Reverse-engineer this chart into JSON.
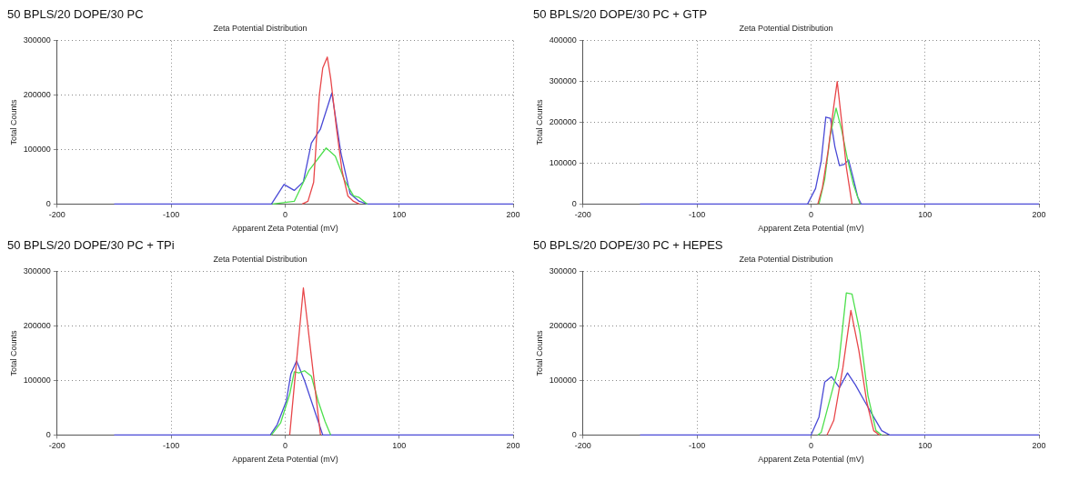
{
  "chart_data": [
    {
      "type": "line",
      "title": "50 BPLS/20 DOPE/30 PC",
      "subtitle": "Zeta Potential Distribution",
      "xlabel": "Apparent Zeta Potential (mV)",
      "ylabel": "Total Counts",
      "xlim": [
        -200,
        200
      ],
      "xticks": [
        -200,
        -100,
        0,
        100,
        200
      ],
      "ylim": [
        0,
        300000
      ],
      "yticks": [
        0,
        100000,
        200000,
        300000
      ],
      "grid": true,
      "legend": false,
      "marker": "none",
      "line_style": "solid",
      "series": [
        {
          "color": "#e8474a",
          "x": [
            15,
            20,
            25,
            30,
            33,
            37,
            40,
            45,
            50,
            55,
            60,
            65
          ],
          "values": [
            0,
            5000,
            40000,
            200000,
            250000,
            270000,
            230000,
            140000,
            60000,
            15000,
            5000,
            0
          ]
        },
        {
          "color": "#4ee04e",
          "x": [
            -11,
            8,
            21,
            36,
            44,
            52,
            60,
            65,
            72
          ],
          "values": [
            0,
            5000,
            62000,
            103000,
            88000,
            44000,
            15000,
            12000,
            0
          ]
        },
        {
          "color": "#4a4ad6",
          "x": [
            -150,
            -12,
            -1,
            8,
            16,
            23,
            31,
            41,
            49,
            57,
            65,
            72,
            200
          ],
          "values": [
            0,
            0,
            36000,
            25000,
            41000,
            112000,
            138000,
            204000,
            93000,
            19000,
            5000,
            0,
            0
          ]
        }
      ]
    },
    {
      "type": "line",
      "title": "50 BPLS/20 DOPE/30 PC + GTP",
      "subtitle": "Zeta Potential Distribution",
      "xlabel": "Apparent Zeta Potential (mV)",
      "ylabel": "Total Counts",
      "xlim": [
        -200,
        200
      ],
      "xticks": [
        -200,
        -100,
        0,
        100,
        200
      ],
      "ylim": [
        0,
        400000
      ],
      "yticks": [
        0,
        100000,
        200000,
        300000,
        400000
      ],
      "grid": true,
      "legend": false,
      "marker": "none",
      "line_style": "solid",
      "series": [
        {
          "color": "#e8474a",
          "x": [
            6,
            10,
            15,
            20,
            23,
            27,
            31,
            36
          ],
          "values": [
            0,
            40000,
            130000,
            240000,
            300000,
            200000,
            90000,
            0
          ]
        },
        {
          "color": "#4ee04e",
          "x": [
            7,
            12,
            17,
            22,
            27,
            32,
            37,
            43
          ],
          "values": [
            0,
            60000,
            170000,
            235000,
            180000,
            110000,
            50000,
            0
          ]
        },
        {
          "color": "#4a4ad6",
          "x": [
            -150,
            -3,
            4,
            9,
            13,
            17,
            21,
            25,
            29,
            33,
            37,
            41,
            44,
            200
          ],
          "values": [
            0,
            0,
            38000,
            106000,
            213000,
            210000,
            140000,
            94000,
            97000,
            108000,
            64000,
            17000,
            0,
            0
          ]
        }
      ]
    },
    {
      "type": "line",
      "title": "50 BPLS/20 DOPE/30 PC + TPi",
      "subtitle": "Zeta Potential Distribution",
      "xlabel": "Apparent Zeta Potential (mV)",
      "ylabel": "Total Counts",
      "xlim": [
        -200,
        200
      ],
      "xticks": [
        -200,
        -100,
        0,
        100,
        200
      ],
      "ylim": [
        0,
        300000
      ],
      "yticks": [
        0,
        100000,
        200000,
        300000
      ],
      "grid": true,
      "legend": false,
      "marker": "none",
      "line_style": "solid",
      "series": [
        {
          "color": "#e8474a",
          "x": [
            4,
            16,
            31
          ],
          "values": [
            0,
            270000,
            0
          ]
        },
        {
          "color": "#4ee04e",
          "x": [
            -12,
            -4,
            4,
            8,
            12,
            17,
            23,
            29,
            35,
            40
          ],
          "values": [
            0,
            22000,
            75000,
            116000,
            114000,
            118000,
            108000,
            62000,
            25000,
            0
          ]
        },
        {
          "color": "#4a4ad6",
          "x": [
            -150,
            -13,
            -7,
            1,
            5,
            10,
            17,
            25,
            29,
            33,
            200
          ],
          "values": [
            0,
            0,
            19000,
            62000,
            112000,
            136000,
            100000,
            50000,
            25000,
            0,
            0
          ]
        }
      ]
    },
    {
      "type": "line",
      "title": "50 BPLS/20 DOPE/30 PC + HEPES",
      "subtitle": "Zeta Potential Distribution",
      "xlabel": "Apparent Zeta Potential (mV)",
      "ylabel": "Total Counts",
      "xlim": [
        -200,
        200
      ],
      "xticks": [
        -200,
        -100,
        0,
        100,
        200
      ],
      "ylim": [
        0,
        300000
      ],
      "yticks": [
        0,
        100000,
        200000,
        300000
      ],
      "grid": true,
      "legend": false,
      "marker": "none",
      "line_style": "solid",
      "series": [
        {
          "color": "#e8474a",
          "x": [
            14,
            20,
            28,
            35,
            42,
            49,
            55,
            60
          ],
          "values": [
            0,
            27000,
            124000,
            229000,
            155000,
            60000,
            8000,
            0
          ]
        },
        {
          "color": "#4ee04e",
          "x": [
            6,
            9,
            24,
            31,
            36,
            43,
            50,
            57,
            62
          ],
          "values": [
            0,
            5000,
            124000,
            261000,
            259000,
            188000,
            72000,
            8000,
            0
          ]
        },
        {
          "color": "#4a4ad6",
          "x": [
            -150,
            0,
            7,
            12,
            18,
            25,
            32,
            39,
            47,
            55,
            62,
            69,
            200
          ],
          "values": [
            0,
            0,
            33000,
            97000,
            107000,
            87000,
            114000,
            92000,
            62000,
            33000,
            8000,
            0,
            0
          ]
        }
      ]
    }
  ]
}
